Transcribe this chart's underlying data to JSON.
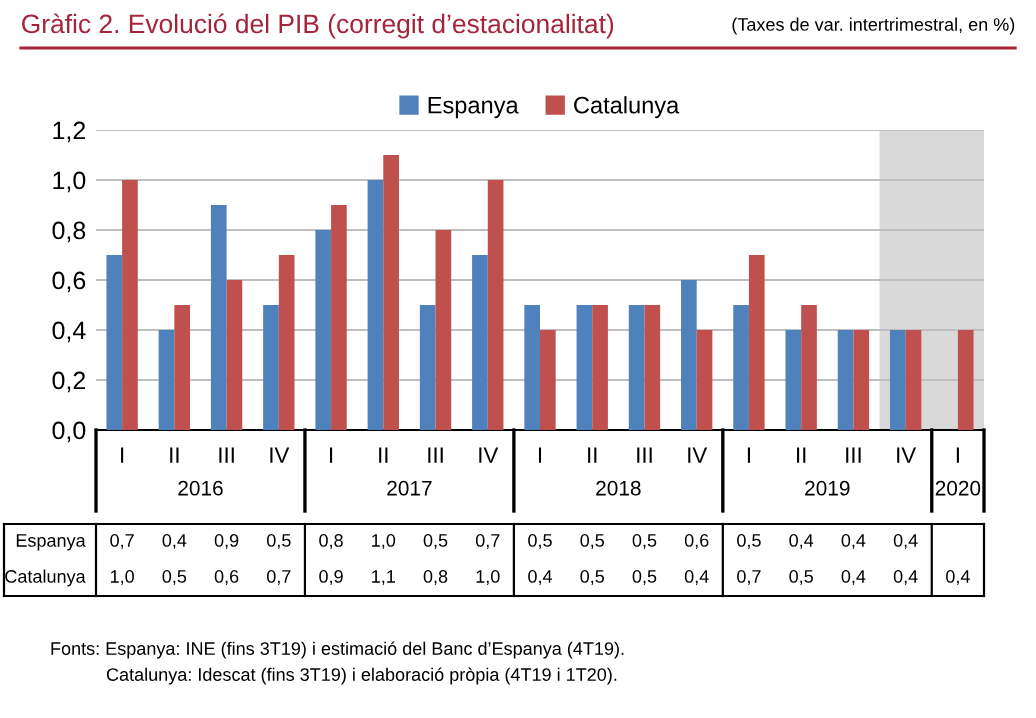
{
  "chart_data": {
    "type": "bar",
    "title": "Gràfic 2. Evolució del PIB (corregit d’estacionalitat)",
    "subtitle": "(Taxes de var. intertrimestral, en %)",
    "categories": [
      "I",
      "II",
      "III",
      "IV",
      "I",
      "II",
      "III",
      "IV",
      "I",
      "II",
      "III",
      "IV",
      "I",
      "II",
      "III",
      "IV",
      "I"
    ],
    "series": [
      {
        "name": "Espanya",
        "color": "#4f81bd",
        "values": [
          0.7,
          0.4,
          0.9,
          0.5,
          0.8,
          1.0,
          0.5,
          0.7,
          0.5,
          0.5,
          0.5,
          0.6,
          0.5,
          0.4,
          0.4,
          0.4,
          null
        ],
        "value_labels": [
          "0,7",
          "0,4",
          "0,9",
          "0,5",
          "0,8",
          "1,0",
          "0,5",
          "0,7",
          "0,5",
          "0,5",
          "0,5",
          "0,6",
          "0,5",
          "0,4",
          "0,4",
          "0,4",
          null
        ]
      },
      {
        "name": "Catalunya",
        "color": "#c0504d",
        "values": [
          1.0,
          0.5,
          0.6,
          0.7,
          0.9,
          1.1,
          0.8,
          1.0,
          0.4,
          0.5,
          0.5,
          0.4,
          0.7,
          0.5,
          0.4,
          0.4,
          0.4
        ],
        "value_labels": [
          "1,0",
          "0,5",
          "0,6",
          "0,7",
          "0,9",
          "1,1",
          "0,8",
          "1,0",
          "0,4",
          "0,5",
          "0,5",
          "0,4",
          "0,7",
          "0,5",
          "0,4",
          "0,4",
          "0,4"
        ]
      }
    ],
    "ylim": [
      0,
      1.2
    ],
    "yticks": [
      {
        "value": 0,
        "label": "0,0"
      },
      {
        "value": 0.2,
        "label": "0,2"
      },
      {
        "value": 0.4,
        "label": "0,4"
      },
      {
        "value": 0.6,
        "label": "0,6"
      },
      {
        "value": 0.8,
        "label": "0,8"
      },
      {
        "value": 1.0,
        "label": "1,0"
      },
      {
        "value": 1.2,
        "label": "1,2"
      }
    ],
    "grid": "y",
    "legend": "top",
    "annotations": [
      "2016",
      "2017",
      "2018",
      "2019",
      "2020",
      "Fonts: Espanya: INE (fins 3T19) i estimació del Banc d’Espanya (4T19).",
      "Catalunya: Idescat (fins 3T19) i elaboració pròpia (4T19 i 1T20)."
    ]
  }
}
